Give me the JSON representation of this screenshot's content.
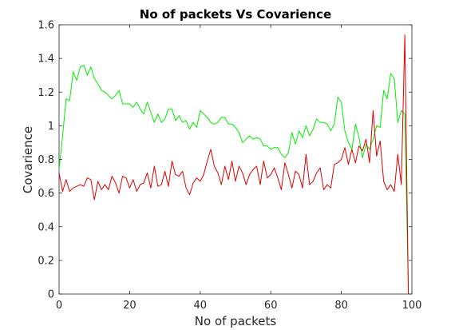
{
  "chart_data": {
    "type": "line",
    "title": "No of packets Vs Covarience",
    "xlabel": "No of packets",
    "ylabel": "Covarience",
    "xlim": [
      0,
      100
    ],
    "ylim": [
      0,
      1.6
    ],
    "xticks": [
      0,
      20,
      40,
      60,
      80,
      100
    ],
    "xtick_labels": [
      "0",
      "20",
      "40",
      "60",
      "80",
      "100"
    ],
    "yticks": [
      0,
      0.2,
      0.4,
      0.6,
      0.8,
      1,
      1.2,
      1.4,
      1.6
    ],
    "ytick_labels": [
      "0",
      "0.2",
      "0.4",
      "0.6",
      "0.8",
      "1",
      "1.2",
      "1.4",
      "1.6"
    ],
    "grid": false,
    "box": true,
    "x": [
      0,
      1,
      2,
      3,
      4,
      5,
      6,
      7,
      8,
      9,
      10,
      11,
      12,
      13,
      14,
      15,
      16,
      17,
      18,
      19,
      20,
      21,
      22,
      23,
      24,
      25,
      26,
      27,
      28,
      29,
      30,
      31,
      32,
      33,
      34,
      35,
      36,
      37,
      38,
      39,
      40,
      41,
      42,
      43,
      44,
      45,
      46,
      47,
      48,
      49,
      50,
      51,
      52,
      53,
      54,
      55,
      56,
      57,
      58,
      59,
      60,
      61,
      62,
      63,
      64,
      65,
      66,
      67,
      68,
      69,
      70,
      71,
      72,
      73,
      74,
      75,
      76,
      77,
      78,
      79,
      80,
      81,
      82,
      83,
      84,
      85,
      86,
      87,
      88,
      89,
      90,
      91,
      92,
      93,
      94,
      95,
      96,
      97,
      98,
      99
    ],
    "series": [
      {
        "color": "#00ee00",
        "values": [
          0.74,
          0.94,
          1.16,
          1.15,
          1.32,
          1.27,
          1.35,
          1.36,
          1.3,
          1.35,
          1.28,
          1.25,
          1.21,
          1.2,
          1.18,
          1.16,
          1.18,
          1.21,
          1.13,
          1.13,
          1.13,
          1.11,
          1.14,
          1.1,
          1.07,
          1.14,
          1.08,
          1.02,
          1.07,
          1.02,
          1.04,
          1.1,
          1.1,
          1.03,
          1.06,
          1.02,
          1.03,
          0.98,
          1.02,
          0.99,
          1.09,
          1.07,
          1.05,
          1.02,
          1.01,
          1.02,
          1.05,
          1.05,
          1.01,
          1.01,
          0.99,
          0.96,
          0.9,
          0.92,
          0.94,
          0.92,
          0.93,
          0.92,
          0.88,
          0.88,
          0.86,
          0.87,
          0.87,
          0.83,
          0.81,
          0.84,
          0.96,
          0.89,
          0.97,
          0.93,
          1.0,
          0.94,
          0.98,
          1.04,
          1.02,
          1.02,
          1.01,
          0.97,
          1.01,
          1.17,
          1.14,
          0.97,
          0.9,
          0.86,
          1.01,
          0.93,
          0.81,
          0.89,
          0.86,
          0.92,
          1.0,
          0.99,
          1.21,
          1.16,
          1.31,
          1.28,
          1.02,
          1.09,
          1.07,
          0.02
        ]
      },
      {
        "color": "#dd0000",
        "values": [
          0.72,
          0.61,
          0.68,
          0.61,
          0.63,
          0.64,
          0.65,
          0.64,
          0.69,
          0.68,
          0.56,
          0.67,
          0.62,
          0.65,
          0.62,
          0.7,
          0.66,
          0.6,
          0.7,
          0.69,
          0.63,
          0.68,
          0.61,
          0.65,
          0.66,
          0.72,
          0.63,
          0.76,
          0.64,
          0.65,
          0.73,
          0.64,
          0.79,
          0.71,
          0.7,
          0.73,
          0.63,
          0.59,
          0.66,
          0.69,
          0.67,
          0.71,
          0.79,
          0.86,
          0.76,
          0.72,
          0.65,
          0.76,
          0.68,
          0.79,
          0.67,
          0.76,
          0.72,
          0.65,
          0.71,
          0.74,
          0.76,
          0.65,
          0.79,
          0.69,
          0.71,
          0.75,
          0.69,
          0.62,
          0.78,
          0.71,
          0.63,
          0.73,
          0.71,
          0.63,
          0.83,
          0.65,
          0.67,
          0.72,
          0.75,
          0.62,
          0.65,
          0.63,
          0.77,
          0.78,
          0.8,
          0.87,
          0.77,
          0.86,
          0.78,
          0.88,
          0.85,
          0.92,
          0.78,
          1.09,
          0.82,
          0.91,
          0.67,
          0.62,
          0.65,
          0.61,
          0.83,
          0.65,
          1.54,
          0.0
        ]
      }
    ]
  }
}
